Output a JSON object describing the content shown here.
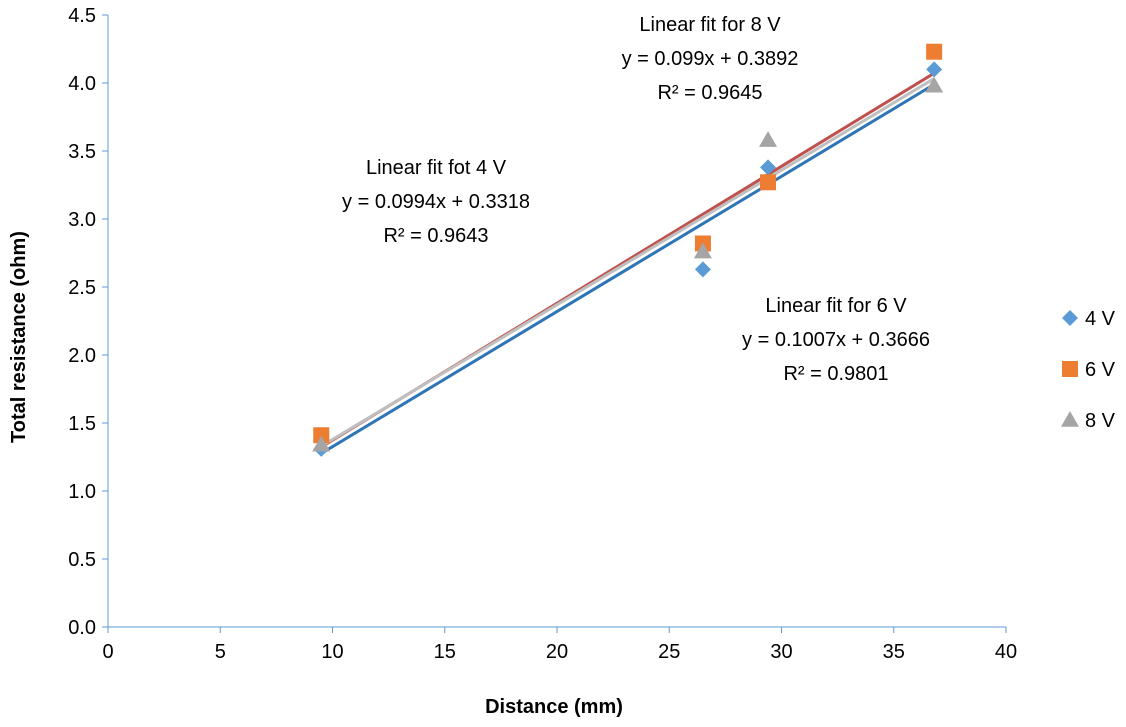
{
  "chart_data": {
    "type": "scatter",
    "title": "",
    "xlabel": "Distance (mm)",
    "ylabel": "Total resistance (ohm)",
    "xlim": [
      0,
      40
    ],
    "ylim": [
      0,
      4.5
    ],
    "x_ticks": [
      "0",
      "5",
      "10",
      "15",
      "20",
      "25",
      "30",
      "35",
      "40"
    ],
    "y_ticks": [
      "0.0",
      "0.5",
      "1.0",
      "1.5",
      "2.0",
      "2.5",
      "3.0",
      "3.5",
      "4.0",
      "4.5"
    ],
    "grid": false,
    "legend_position": "right",
    "series": [
      {
        "name": "4 V",
        "marker": "diamond",
        "color": "#5B9BD5",
        "trend_color": "#2E75B6",
        "points": [
          [
            9.5,
            1.31
          ],
          [
            26.5,
            2.63
          ],
          [
            29.4,
            3.38
          ],
          [
            36.8,
            4.1
          ]
        ],
        "fit": {
          "slope": 0.0994,
          "intercept": 0.3318
        }
      },
      {
        "name": "6 V",
        "marker": "square",
        "color": "#ED7D31",
        "trend_color": "#C0504D",
        "points": [
          [
            9.5,
            1.41
          ],
          [
            26.5,
            2.82
          ],
          [
            29.4,
            3.27
          ],
          [
            36.8,
            4.23
          ]
        ],
        "fit": {
          "slope": 0.1007,
          "intercept": 0.3666
        }
      },
      {
        "name": "8 V",
        "marker": "triangle",
        "color": "#A5A5A5",
        "trend_color": "#BFBFBF",
        "points": [
          [
            9.5,
            1.34
          ],
          [
            26.5,
            2.76
          ],
          [
            29.4,
            3.58
          ],
          [
            36.8,
            3.98
          ]
        ],
        "fit": {
          "slope": 0.099,
          "intercept": 0.3892
        }
      }
    ],
    "annotations": [
      {
        "name": "fit-annotation-8v",
        "lines": [
          "Linear fit for 8 V",
          "y = 0.099x + 0.3892",
          "R² = 0.9645"
        ]
      },
      {
        "name": "fit-annotation-4v",
        "lines": [
          "Linear fit fot 4 V",
          "y = 0.0994x + 0.3318",
          "R² = 0.9643"
        ]
      },
      {
        "name": "fit-annotation-6v",
        "lines": [
          "Linear fit for 6 V",
          "y = 0.1007x + 0.3666",
          "R² = 0.9801"
        ]
      }
    ],
    "axis_color": "#5B9BD5"
  }
}
